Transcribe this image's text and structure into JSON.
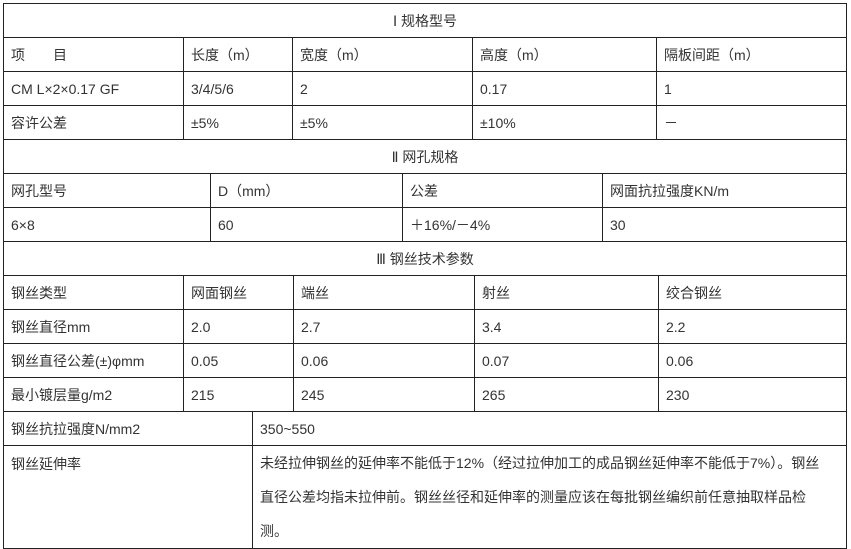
{
  "section1": {
    "title": "Ⅰ  规格型号",
    "headers": [
      "项　　目",
      "长度（m）",
      "宽度（m）",
      "高度（m）",
      "隔板间距（m）"
    ],
    "rows": [
      [
        "CM L×2×0.17  GF",
        "3/4/5/6",
        "2",
        "0.17",
        "1"
      ],
      [
        "容许公差",
        "±5%",
        "±5%",
        "±10%",
        "－"
      ]
    ]
  },
  "section2": {
    "title": "Ⅱ  网孔规格",
    "headers": [
      "网孔型号",
      "D（mm）",
      "公差",
      "网面抗拉强度KN/m"
    ],
    "rows": [
      [
        "6×8",
        "60",
        "＋16%/－4%",
        "30"
      ]
    ]
  },
  "section3": {
    "title": "Ⅲ  钢丝技术参数",
    "headers": [
      "钢丝类型",
      "网面钢丝",
      "端丝",
      "射丝",
      "绞合钢丝"
    ],
    "rows": [
      [
        "钢丝直径mm",
        "2.0",
        "2.7",
        "3.4",
        "2.2"
      ],
      [
        "钢丝直径公差(±)φmm",
        "0.05",
        "0.06",
        "0.07",
        "0.06"
      ],
      [
        "最小镀层量g/m2",
        "215",
        "245",
        "265",
        "230"
      ]
    ],
    "strength_label": "钢丝抗拉强度N/mm2",
    "strength_value": "350~550",
    "elongation_label": "钢丝延伸率",
    "elongation_text": "未经拉伸钢丝的延伸率不能低于12%（经过拉伸加工的成品钢丝延伸率不能低于7%）。钢丝直径公差均指未拉伸前。钢丝丝径和延伸率的测量应该在每批钢丝编织前任意抽取样品检测。"
  }
}
